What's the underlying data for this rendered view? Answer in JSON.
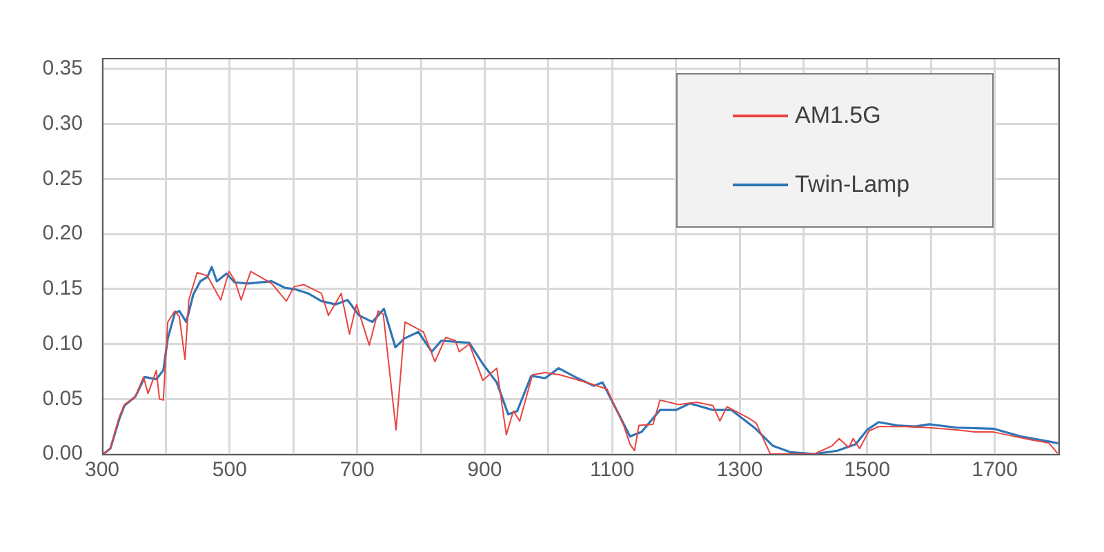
{
  "chart_data": {
    "type": "line",
    "xlim": [
      300,
      1800
    ],
    "ylim": [
      0,
      0.36
    ],
    "xticks": [
      300,
      {
        "value": 400,
        "label": null
      },
      500,
      {
        "value": 600,
        "label": null
      },
      700,
      {
        "value": 800,
        "label": null
      },
      900,
      {
        "value": 1000,
        "label": null
      },
      1100,
      {
        "value": 1200,
        "label": null
      },
      1300,
      {
        "value": 1400,
        "label": null
      },
      1500,
      {
        "value": 1600,
        "label": null
      },
      1700,
      {
        "value": 1800,
        "label": null
      }
    ],
    "yticks": [
      {
        "value": 0,
        "label": "0.00"
      },
      {
        "value": 0.05,
        "label": "0.05"
      },
      {
        "value": 0.1,
        "label": "0.10"
      },
      {
        "value": 0.15,
        "label": "0.15"
      },
      {
        "value": 0.2,
        "label": "0.20"
      },
      {
        "value": 0.25,
        "label": "0.25"
      },
      {
        "value": 0.3,
        "label": "0.30"
      },
      {
        "value": 0.35,
        "label": "0.35"
      }
    ],
    "grid": true,
    "legend": "top right",
    "marker": "none",
    "line_style": "solid",
    "series": [
      {
        "name": "AM1.5G",
        "color": "#e8433f",
        "x": [
          302,
          313,
          327,
          335,
          352,
          365,
          372,
          385,
          390,
          396,
          403,
          414,
          421,
          430,
          436,
          449,
          465,
          486,
          499,
          508,
          518,
          533,
          566,
          589,
          601,
          616,
          644,
          655,
          675,
          688,
          699,
          719,
          733,
          741,
          761,
          775,
          804,
          822,
          839,
          854,
          860,
          876,
          897,
          919,
          934,
          945,
          955,
          975,
          995,
          1018,
          1042,
          1071,
          1092,
          1118,
          1128,
          1135,
          1142,
          1164,
          1175,
          1204,
          1233,
          1258,
          1269,
          1280,
          1316,
          1326,
          1348,
          1417,
          1445,
          1456,
          1471,
          1478,
          1488,
          1503,
          1518,
          1561,
          1597,
          1640,
          1669,
          1698,
          1756,
          1785,
          1798
        ],
        "values": [
          0,
          0.005,
          0.034,
          0.045,
          0.052,
          0.07,
          0.055,
          0.076,
          0.05,
          0.049,
          0.12,
          0.13,
          0.125,
          0.086,
          0.14,
          0.165,
          0.162,
          0.14,
          0.166,
          0.158,
          0.14,
          0.166,
          0.155,
          0.139,
          0.152,
          0.154,
          0.146,
          0.126,
          0.146,
          0.109,
          0.136,
          0.099,
          0.13,
          0.127,
          0.022,
          0.12,
          0.111,
          0.084,
          0.106,
          0.103,
          0.093,
          0.1,
          0.067,
          0.078,
          0.0175,
          0.039,
          0.03,
          0.072,
          0.074,
          0.072,
          0.068,
          0.063,
          0.059,
          0.026,
          0.009,
          0.003,
          0.026,
          0.027,
          0.049,
          0.045,
          0.047,
          0.044,
          0.03,
          0.043,
          0.032,
          0.028,
          0,
          0,
          0.0075,
          0.014,
          0.006,
          0.014,
          0.005,
          0.021,
          0.025,
          0.025,
          0.024,
          0.022,
          0.02,
          0.02,
          0.013,
          0.01,
          0.001
        ]
      },
      {
        "name": "Twin-Lamp",
        "color": "#2e75b6",
        "x": [
          302,
          313,
          327,
          335,
          352,
          367,
          385,
          396,
          403,
          414,
          421,
          432,
          443,
          454,
          465,
          472,
          480,
          495,
          508,
          529,
          566,
          587,
          601,
          623,
          644,
          666,
          685,
          703,
          724,
          742,
          760,
          774,
          796,
          817,
          832,
          876,
          897,
          919,
          937,
          951,
          973,
          995,
          1016,
          1042,
          1071,
          1085,
          1107,
          1128,
          1146,
          1175,
          1200,
          1222,
          1258,
          1287,
          1323,
          1352,
          1380,
          1417,
          1453,
          1482,
          1500,
          1518,
          1547,
          1575,
          1597,
          1640,
          1698,
          1741,
          1798
        ],
        "values": [
          0,
          0.005,
          0.032,
          0.044,
          0.052,
          0.07,
          0.068,
          0.076,
          0.105,
          0.128,
          0.13,
          0.12,
          0.145,
          0.157,
          0.161,
          0.17,
          0.157,
          0.164,
          0.156,
          0.155,
          0.157,
          0.151,
          0.15,
          0.146,
          0.139,
          0.136,
          0.14,
          0.126,
          0.12,
          0.132,
          0.097,
          0.105,
          0.111,
          0.093,
          0.103,
          0.101,
          0.082,
          0.065,
          0.036,
          0.039,
          0.071,
          0.069,
          0.078,
          0.07,
          0.062,
          0.065,
          0.04,
          0.016,
          0.02,
          0.04,
          0.04,
          0.046,
          0.04,
          0.04,
          0.024,
          0.0075,
          0.0016,
          0,
          0.003,
          0.009,
          0.022,
          0.029,
          0.026,
          0.025,
          0.027,
          0.024,
          0.023,
          0.016,
          0.01
        ]
      }
    ]
  }
}
